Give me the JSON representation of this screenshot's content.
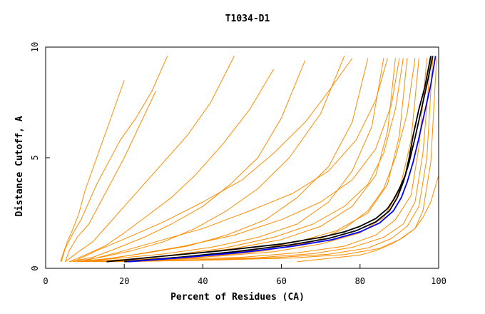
{
  "chart_data": {
    "type": "line",
    "title": "T1034-D1",
    "xlabel": "Percent of Residues (CA)",
    "ylabel": "Distance Cutoff, A",
    "xlim": [
      0,
      100
    ],
    "ylim": [
      0,
      10
    ],
    "x_ticks": [
      0,
      20,
      40,
      60,
      80,
      100
    ],
    "y_ticks": [
      0,
      5,
      10
    ],
    "grid": false,
    "legend": "none",
    "colors": {
      "models": "#ff8c00",
      "reference_a": "#000000",
      "reference_b": "#0000ff",
      "frame": "#000000"
    },
    "series": [
      {
        "role": "model",
        "color": "#ff8c00",
        "x": [
          3.8,
          4.5,
          5.5,
          7,
          8.5,
          10,
          12,
          14,
          16,
          18,
          20
        ],
        "y": [
          0.3,
          0.7,
          1.2,
          1.8,
          2.5,
          3.5,
          4.5,
          5.5,
          6.5,
          7.5,
          8.5
        ]
      },
      {
        "role": "model",
        "color": "#ff8c00",
        "x": [
          4,
          5,
          7,
          9,
          11,
          13,
          16,
          19,
          23,
          27,
          31
        ],
        "y": [
          0.3,
          0.9,
          1.6,
          2.2,
          3.0,
          3.8,
          4.8,
          5.8,
          6.8,
          8.0,
          9.6
        ]
      },
      {
        "role": "model",
        "color": "#ff8c00",
        "x": [
          5,
          6,
          8,
          11,
          14,
          17,
          20,
          24,
          28
        ],
        "y": [
          0.3,
          0.8,
          1.4,
          2.0,
          3.0,
          4.0,
          5.0,
          6.5,
          8.0
        ]
      },
      {
        "role": "model",
        "color": "#ff8c00",
        "x": [
          5,
          8,
          12,
          16,
          20,
          25,
          30,
          36,
          42,
          48
        ],
        "y": [
          0.3,
          0.7,
          1.2,
          2.0,
          2.8,
          3.8,
          4.8,
          6.0,
          7.5,
          9.6
        ]
      },
      {
        "role": "model",
        "color": "#ff8c00",
        "x": [
          6,
          10,
          15,
          20,
          26,
          32,
          38,
          45,
          52,
          58
        ],
        "y": [
          0.3,
          0.6,
          1.0,
          1.6,
          2.4,
          3.2,
          4.2,
          5.6,
          7.2,
          9.0
        ]
      },
      {
        "role": "model",
        "color": "#ff8c00",
        "x": [
          6,
          12,
          18,
          25,
          32,
          40,
          47,
          54,
          60,
          66
        ],
        "y": [
          0.3,
          0.5,
          0.9,
          1.4,
          2.0,
          2.8,
          3.8,
          5.0,
          6.8,
          9.4
        ]
      },
      {
        "role": "model",
        "color": "#ff8c00",
        "x": [
          7,
          14,
          22,
          30,
          38,
          46,
          54,
          62,
          70,
          76
        ],
        "y": [
          0.3,
          0.5,
          0.8,
          1.2,
          1.8,
          2.6,
          3.6,
          5.0,
          7.0,
          9.6
        ]
      },
      {
        "role": "model",
        "color": "#ff8c00",
        "x": [
          8,
          16,
          26,
          36,
          46,
          56,
          64,
          72,
          78,
          82
        ],
        "y": [
          0.3,
          0.45,
          0.7,
          1.0,
          1.5,
          2.2,
          3.2,
          4.6,
          6.6,
          9.5
        ]
      },
      {
        "role": "model",
        "color": "#ff8c00",
        "x": [
          8,
          18,
          30,
          42,
          54,
          64,
          72,
          78,
          83,
          86
        ],
        "y": [
          0.3,
          0.45,
          0.65,
          0.95,
          1.4,
          2.0,
          3.0,
          4.4,
          6.4,
          9.5
        ]
      },
      {
        "role": "model",
        "color": "#ff8c00",
        "x": [
          9,
          20,
          34,
          48,
          60,
          70,
          78,
          84,
          87,
          89
        ],
        "y": [
          0.3,
          0.4,
          0.6,
          0.9,
          1.3,
          1.9,
          2.8,
          4.2,
          6.2,
          9.5
        ]
      },
      {
        "role": "model",
        "color": "#ff8c00",
        "x": [
          10,
          24,
          38,
          52,
          64,
          74,
          82,
          87,
          90,
          92
        ],
        "y": [
          0.3,
          0.4,
          0.55,
          0.8,
          1.2,
          1.7,
          2.5,
          3.8,
          6.0,
          9.5
        ]
      },
      {
        "role": "model",
        "color": "#ff8c00",
        "x": [
          12,
          28,
          44,
          58,
          70,
          80,
          86,
          90,
          93,
          95
        ],
        "y": [
          0.3,
          0.4,
          0.55,
          0.75,
          1.1,
          1.6,
          2.3,
          3.5,
          5.8,
          9.5
        ]
      },
      {
        "role": "model",
        "color": "#ff8c00",
        "x": [
          14,
          32,
          50,
          64,
          76,
          84,
          89,
          93,
          95,
          97
        ],
        "y": [
          0.3,
          0.4,
          0.5,
          0.7,
          1.0,
          1.5,
          2.2,
          3.3,
          5.5,
          9.5
        ]
      },
      {
        "role": "model",
        "color": "#ff8c00",
        "x": [
          16,
          36,
          54,
          68,
          78,
          86,
          91,
          94,
          96,
          98
        ],
        "y": [
          0.3,
          0.38,
          0.48,
          0.66,
          0.95,
          1.4,
          2.0,
          3.0,
          5.2,
          9.5
        ]
      },
      {
        "role": "model",
        "color": "#ff8c00",
        "x": [
          18,
          40,
          58,
          72,
          82,
          88,
          92,
          95,
          97,
          98.5
        ],
        "y": [
          0.3,
          0.38,
          0.48,
          0.64,
          0.92,
          1.35,
          1.9,
          2.8,
          5.0,
          9.5
        ]
      },
      {
        "role": "model",
        "color": "#ff8c00",
        "x": [
          20,
          44,
          62,
          76,
          85,
          90,
          94,
          96,
          98,
          99.5
        ],
        "y": [
          0.3,
          0.38,
          0.46,
          0.62,
          0.9,
          1.3,
          1.8,
          2.6,
          4.8,
          9.5
        ]
      },
      {
        "role": "model",
        "color": "#ff8c00",
        "x": [
          64,
          72,
          80,
          84,
          88,
          91,
          94,
          96,
          98,
          100
        ],
        "y": [
          0.3,
          0.45,
          0.6,
          0.8,
          1.1,
          1.4,
          1.8,
          2.3,
          3.0,
          4.2
        ]
      },
      {
        "role": "model",
        "color": "#ff8c00",
        "x": [
          22,
          40,
          56,
          68,
          76,
          82,
          86,
          89,
          92,
          94
        ],
        "y": [
          0.3,
          0.5,
          0.8,
          1.2,
          1.8,
          2.6,
          3.6,
          5.0,
          7.0,
          9.5
        ]
      },
      {
        "role": "model",
        "color": "#ff8c00",
        "x": [
          15,
          30,
          45,
          58,
          68,
          76,
          82,
          86,
          89,
          91
        ],
        "y": [
          0.3,
          0.55,
          0.9,
          1.4,
          2.0,
          2.8,
          3.8,
          5.2,
          7.2,
          9.5
        ]
      },
      {
        "role": "model",
        "color": "#ff8c00",
        "x": [
          11,
          22,
          35,
          48,
          60,
          70,
          78,
          84,
          88,
          90
        ],
        "y": [
          0.3,
          0.6,
          1.0,
          1.5,
          2.2,
          3.0,
          4.0,
          5.4,
          7.4,
          9.5
        ]
      },
      {
        "role": "model",
        "color": "#ff8c00",
        "x": [
          9,
          18,
          28,
          40,
          52,
          63,
          72,
          79,
          84,
          87
        ],
        "y": [
          0.3,
          0.7,
          1.2,
          1.8,
          2.6,
          3.4,
          4.4,
          5.8,
          7.6,
          9.5
        ]
      },
      {
        "role": "model",
        "color": "#ff8c00",
        "x": [
          7,
          13,
          21,
          30,
          40,
          50,
          58,
          66,
          72,
          78
        ],
        "y": [
          0.3,
          0.8,
          1.4,
          2.1,
          3.0,
          4.0,
          5.2,
          6.6,
          8.0,
          9.5
        ]
      },
      {
        "role": "reference",
        "name": "",
        "color": "#000000",
        "x": [
          15.5,
          30,
          45,
          60,
          70,
          76,
          80,
          84,
          87,
          88.5,
          90,
          91.5,
          92.5,
          93.5,
          95,
          96.5,
          98
        ],
        "y": [
          0.3,
          0.55,
          0.8,
          1.1,
          1.4,
          1.65,
          1.9,
          2.25,
          2.7,
          3.1,
          3.6,
          4.2,
          5.0,
          6.0,
          7.2,
          8.2,
          9.6
        ]
      },
      {
        "role": "reference",
        "name": "",
        "color": "#000000",
        "x": [
          20,
          34,
          48,
          62,
          72,
          79,
          84,
          87.5,
          89.5,
          91,
          92.5,
          94,
          95.5,
          97,
          98.5
        ],
        "y": [
          0.3,
          0.5,
          0.75,
          1.05,
          1.35,
          1.7,
          2.1,
          2.6,
          3.2,
          3.9,
          4.8,
          5.9,
          7.1,
          8.3,
          9.6
        ]
      },
      {
        "role": "reference",
        "name": "",
        "color": "#0000ff",
        "x": [
          21,
          36,
          50,
          63,
          73,
          80,
          85,
          88.5,
          90.5,
          92,
          93.5,
          95,
          96.5,
          98,
          99.2
        ],
        "y": [
          0.3,
          0.5,
          0.72,
          1.0,
          1.3,
          1.65,
          2.05,
          2.6,
          3.2,
          3.9,
          4.8,
          5.9,
          7.1,
          8.3,
          9.6
        ]
      }
    ]
  }
}
